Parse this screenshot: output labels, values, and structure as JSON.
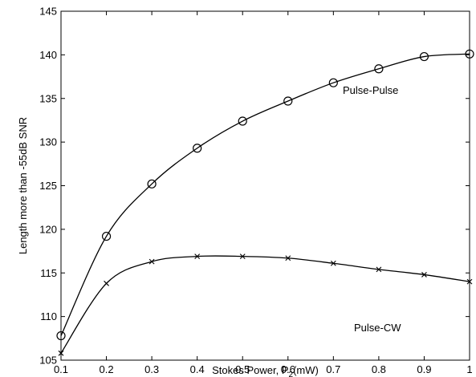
{
  "chart_data": {
    "type": "line",
    "xlabel": "Stokes Power, P",
    "xlabel_sub": "2",
    "xlabel_suffix": "(mW)",
    "ylabel": "Length more than -55dB SNR",
    "xlim": [
      0.1,
      1
    ],
    "ylim": [
      105,
      145
    ],
    "xticks": [
      0.1,
      0.2,
      0.3,
      0.4,
      0.5,
      0.6,
      0.7,
      0.8,
      0.9,
      1
    ],
    "xtick_labels": [
      "0.1",
      "0.2",
      "0.3",
      "0.4",
      "0.5",
      "0.6",
      "0.7",
      "0.8",
      "0.9",
      "1"
    ],
    "yticks": [
      105,
      110,
      115,
      120,
      125,
      130,
      135,
      140,
      145
    ],
    "ytick_labels": [
      "105",
      "110",
      "115",
      "120",
      "125",
      "130",
      "135",
      "140",
      "145"
    ],
    "grid": false,
    "legend": "none",
    "series": [
      {
        "name": "Pulse-Pulse",
        "marker": "circle",
        "x": [
          0.1,
          0.2,
          0.3,
          0.4,
          0.5,
          0.6,
          0.7,
          0.8,
          0.9,
          1.0
        ],
        "y": [
          107.8,
          119.2,
          125.2,
          129.3,
          132.4,
          134.7,
          136.8,
          138.4,
          139.8,
          140.1
        ]
      },
      {
        "name": "Pulse-CW",
        "marker": "x",
        "x": [
          0.1,
          0.2,
          0.3,
          0.4,
          0.5,
          0.6,
          0.7,
          0.8,
          0.9,
          1.0
        ],
        "y": [
          105.8,
          113.8,
          116.3,
          116.9,
          116.9,
          116.7,
          116.1,
          115.4,
          114.8,
          114.0
        ]
      }
    ]
  }
}
